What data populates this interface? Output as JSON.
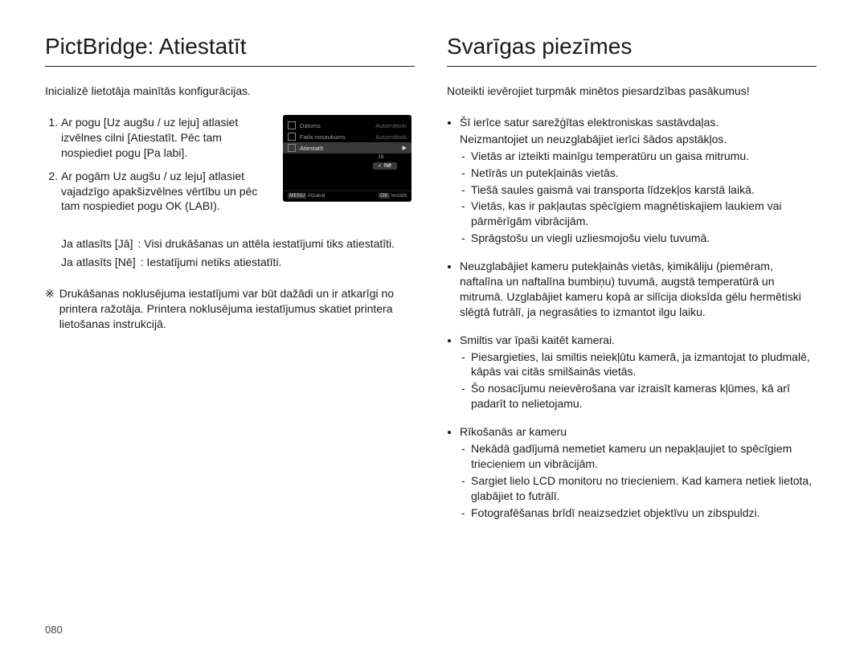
{
  "left": {
    "heading": "PictBridge: Atiestatīt",
    "intro": "Inicializē lietotāja mainītās konfigurācijas.",
    "steps": [
      "Ar pogu [Uz augšu / uz leju] atlasiet izvēlnes cilni [Atiestatīt. Pēc tam nospiediet pogu [Pa labi].",
      "Ar pogām Uz augšu / uz leju] atlasiet vajadzīgo apakšizvēlnes vērtību un pēc tam nospiediet pogu OK (LABI)."
    ],
    "lcd": {
      "rows": [
        {
          "label": "Datums",
          "value": "Automātiski"
        },
        {
          "label": "Faila nosaukums",
          "value": "Automātiski"
        },
        {
          "label": "Atiestatīt",
          "value": ""
        }
      ],
      "options": [
        "Jā",
        "Nē"
      ],
      "selected": "Nē",
      "footer_left_btn": "MENU",
      "footer_left": "Atpakaļ",
      "footer_right_btn": "OK",
      "footer_right": "Iestatīt"
    },
    "defs": [
      {
        "k": "Ja atlasīts [Jā]",
        "v": ": Visi drukāšanas un attēla iestatījumi tiks atiestatīti."
      },
      {
        "k": "Ja atlasīts [Nē]",
        "v": ": Iestatījumi netiks atiestatīti."
      }
    ],
    "footnote_symbol": "※",
    "footnote": "Drukāšanas noklusējuma iestatījumi var būt dažādi un ir atkarīgi no printera ražotāja. Printera noklusējuma iestatījumus skatiet printera lietošanas instrukcijā."
  },
  "right": {
    "heading": "Svarīgas piezīmes",
    "intro": "Noteikti ievērojiet turpmāk minētos piesardzības pasākumus!",
    "items": [
      {
        "head": "Šī ierīce satur sarežģītas elektroniskas sastāvdaļas.",
        "body": "Neizmantojiet un neuzglabājiet ierīci šādos apstākļos.",
        "dash": [
          "Vietās ar izteikti mainīgu temperatūru un gaisa mitrumu.",
          "Netīrās un putekļainās vietās.",
          "Tiešā saules gaismā vai transporta līdzekļos karstā laikā.",
          "Vietās, kas ir pakļautas spēcīgiem magnētiskajiem laukiem vai pārmērīgām vibrācijām.",
          "Sprāgstošu un viegli uzliesmojošu vielu tuvumā."
        ]
      },
      {
        "head": "Neuzglabājiet kameru putekļainās vietās, ķimikāliju (piemēram, naftalīna un naftalīna bumbiņu) tuvumā, augstā temperatūrā un mitrumā. Uzglabājiet kameru kopā ar silīcija dioksīda gēlu hermētiski slēgtā futrālī, ja negrasāties to izmantot ilgu laiku."
      },
      {
        "head": "Smiltis var īpaši kaitēt kamerai.",
        "dash": [
          "Piesargieties, lai smiltis neiekļūtu kamerā, ja izmantojat to pludmalē, kāpās vai citās smilšainās vietās.",
          "Šo nosacījumu neievērošana var izraisīt kameras kļūmes, kā arī padarīt to nelietojamu."
        ]
      },
      {
        "head": "Rīkošanās ar kameru",
        "dash": [
          "Nekādā gadījumā nemetiet kameru un nepakļaujiet to spēcīgiem triecieniem un vibrācijām.",
          "Sargiet lielo LCD monitoru no triecieniem. Kad kamera netiek lietota, glabājiet to futrālī.",
          "Fotografēšanas brīdī neaizsedziet objektīvu un zibspuldzi."
        ]
      }
    ]
  },
  "page_number": "080"
}
